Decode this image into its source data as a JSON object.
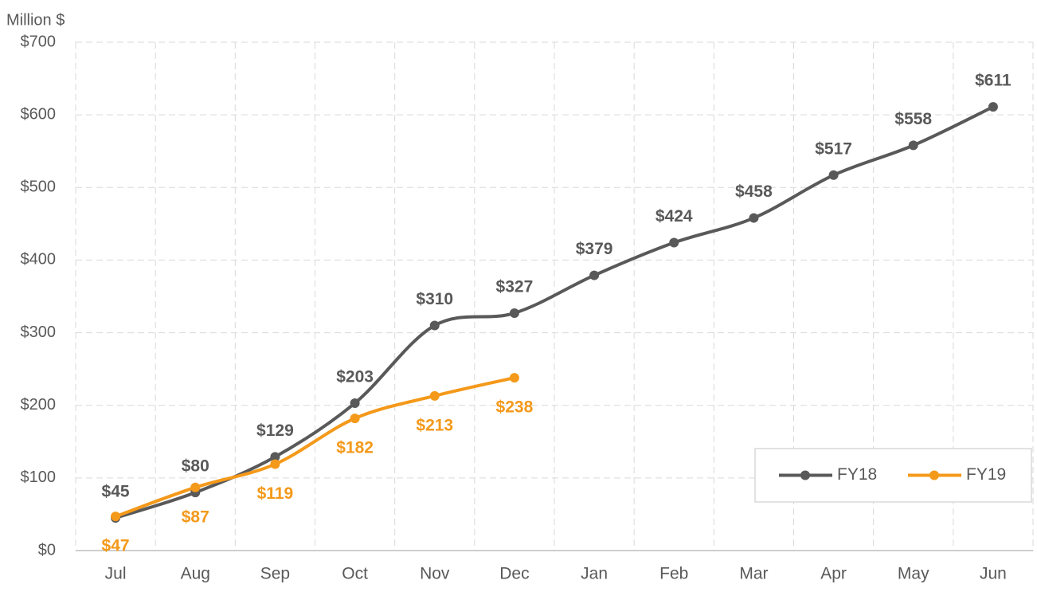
{
  "chart_data": {
    "type": "line",
    "y_label": "Million $",
    "categories": [
      "Jul",
      "Aug",
      "Sep",
      "Oct",
      "Nov",
      "Dec",
      "Jan",
      "Feb",
      "Mar",
      "Apr",
      "May",
      "Jun"
    ],
    "series": [
      {
        "name": "FY18",
        "color": "#595959",
        "values": [
          45,
          80,
          129,
          203,
          310,
          327,
          379,
          424,
          458,
          517,
          558,
          611
        ],
        "value_labels": [
          "$45",
          "$80",
          "$129",
          "$203",
          "$310",
          "$327",
          "$379",
          "$424",
          "$458",
          "$517",
          "$558",
          "$611"
        ]
      },
      {
        "name": "FY19",
        "color": "#f4991a",
        "values": [
          47,
          87,
          119,
          182,
          213,
          238,
          null,
          null,
          null,
          null,
          null,
          null
        ],
        "value_labels": [
          "$47",
          "$87",
          "$119",
          "$182",
          "$213",
          "$238",
          null,
          null,
          null,
          null,
          null,
          null
        ]
      }
    ],
    "ylim": [
      0,
      700
    ],
    "yticks": [
      {
        "value": 0,
        "label": "$0"
      },
      {
        "value": 100,
        "label": "$100"
      },
      {
        "value": 200,
        "label": "$200"
      },
      {
        "value": 300,
        "label": "$300"
      },
      {
        "value": 400,
        "label": "$400"
      },
      {
        "value": 500,
        "label": "$500"
      },
      {
        "value": 600,
        "label": "$600"
      },
      {
        "value": 700,
        "label": "$700"
      }
    ],
    "grid": true,
    "smooth": true,
    "legend": "lower right"
  }
}
